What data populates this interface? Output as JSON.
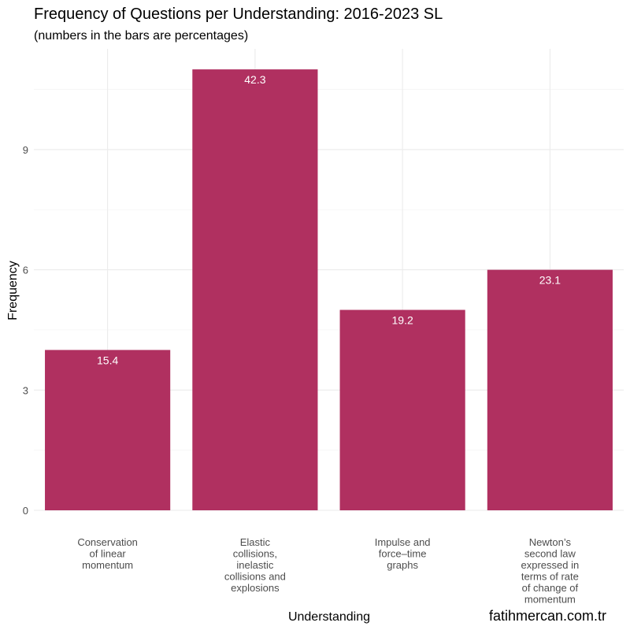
{
  "chart_data": {
    "type": "bar",
    "title": "Frequency of Questions per Understanding: 2016-2023 SL",
    "subtitle": "(numbers in the bars are percentages)",
    "xlabel": "Understanding",
    "ylabel": "Frequency",
    "categories": [
      [
        "Conservation",
        "of linear",
        "momentum"
      ],
      [
        "Elastic",
        "collisions,",
        "inelastic",
        "collisions and",
        "explosions"
      ],
      [
        "Impulse and",
        "force–time",
        "graphs"
      ],
      [
        "Newton’s",
        "second law",
        "expressed in",
        "terms of rate",
        "of change of",
        "momentum"
      ]
    ],
    "values": [
      4,
      11,
      5,
      6
    ],
    "percent_labels": [
      "15.4",
      "42.3",
      "19.2",
      "23.1"
    ],
    "yticks": [
      0,
      3,
      6,
      9
    ],
    "ylim": [
      0,
      11.5
    ],
    "bar_color": "#B03060",
    "grid": true
  },
  "watermark": "fatihmercan.com.tr"
}
